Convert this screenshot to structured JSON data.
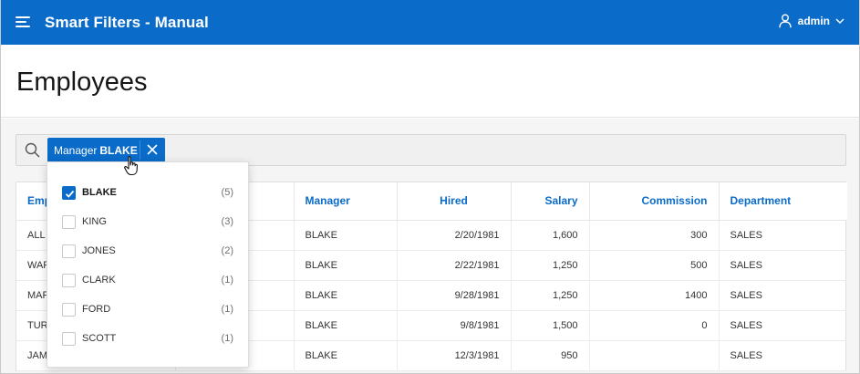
{
  "header": {
    "app_title": "Smart Filters - Manual",
    "user": "admin",
    "bg_color": "#0a6bc9"
  },
  "page": {
    "title": "Employees"
  },
  "search": {
    "chip": {
      "label": "Manager",
      "value": "BLAKE"
    }
  },
  "table": {
    "columns": [
      "Emp",
      "",
      "Manager",
      "Hired",
      "Salary",
      "Commission",
      "Department"
    ],
    "rows": [
      [
        "ALL",
        "",
        "BLAKE",
        "2/20/1981",
        "1,600",
        "300",
        "SALES"
      ],
      [
        "WAF",
        "",
        "BLAKE",
        "2/22/1981",
        "1,250",
        "500",
        "SALES"
      ],
      [
        "MAF",
        "",
        "BLAKE",
        "9/28/1981",
        "1,250",
        "1400",
        "SALES"
      ],
      [
        "TUR",
        "",
        "BLAKE",
        "9/8/1981",
        "1,500",
        "0",
        "SALES"
      ],
      [
        "JAM",
        "",
        "BLAKE",
        "12/3/1981",
        "950",
        "",
        "SALES"
      ]
    ]
  },
  "dropdown": {
    "options": [
      {
        "label": "BLAKE",
        "count": "(5)",
        "checked": true
      },
      {
        "label": "KING",
        "count": "(3)",
        "checked": false
      },
      {
        "label": "JONES",
        "count": "(2)",
        "checked": false
      },
      {
        "label": "CLARK",
        "count": "(1)",
        "checked": false
      },
      {
        "label": "FORD",
        "count": "(1)",
        "checked": false
      },
      {
        "label": "SCOTT",
        "count": "(1)",
        "checked": false
      }
    ]
  }
}
